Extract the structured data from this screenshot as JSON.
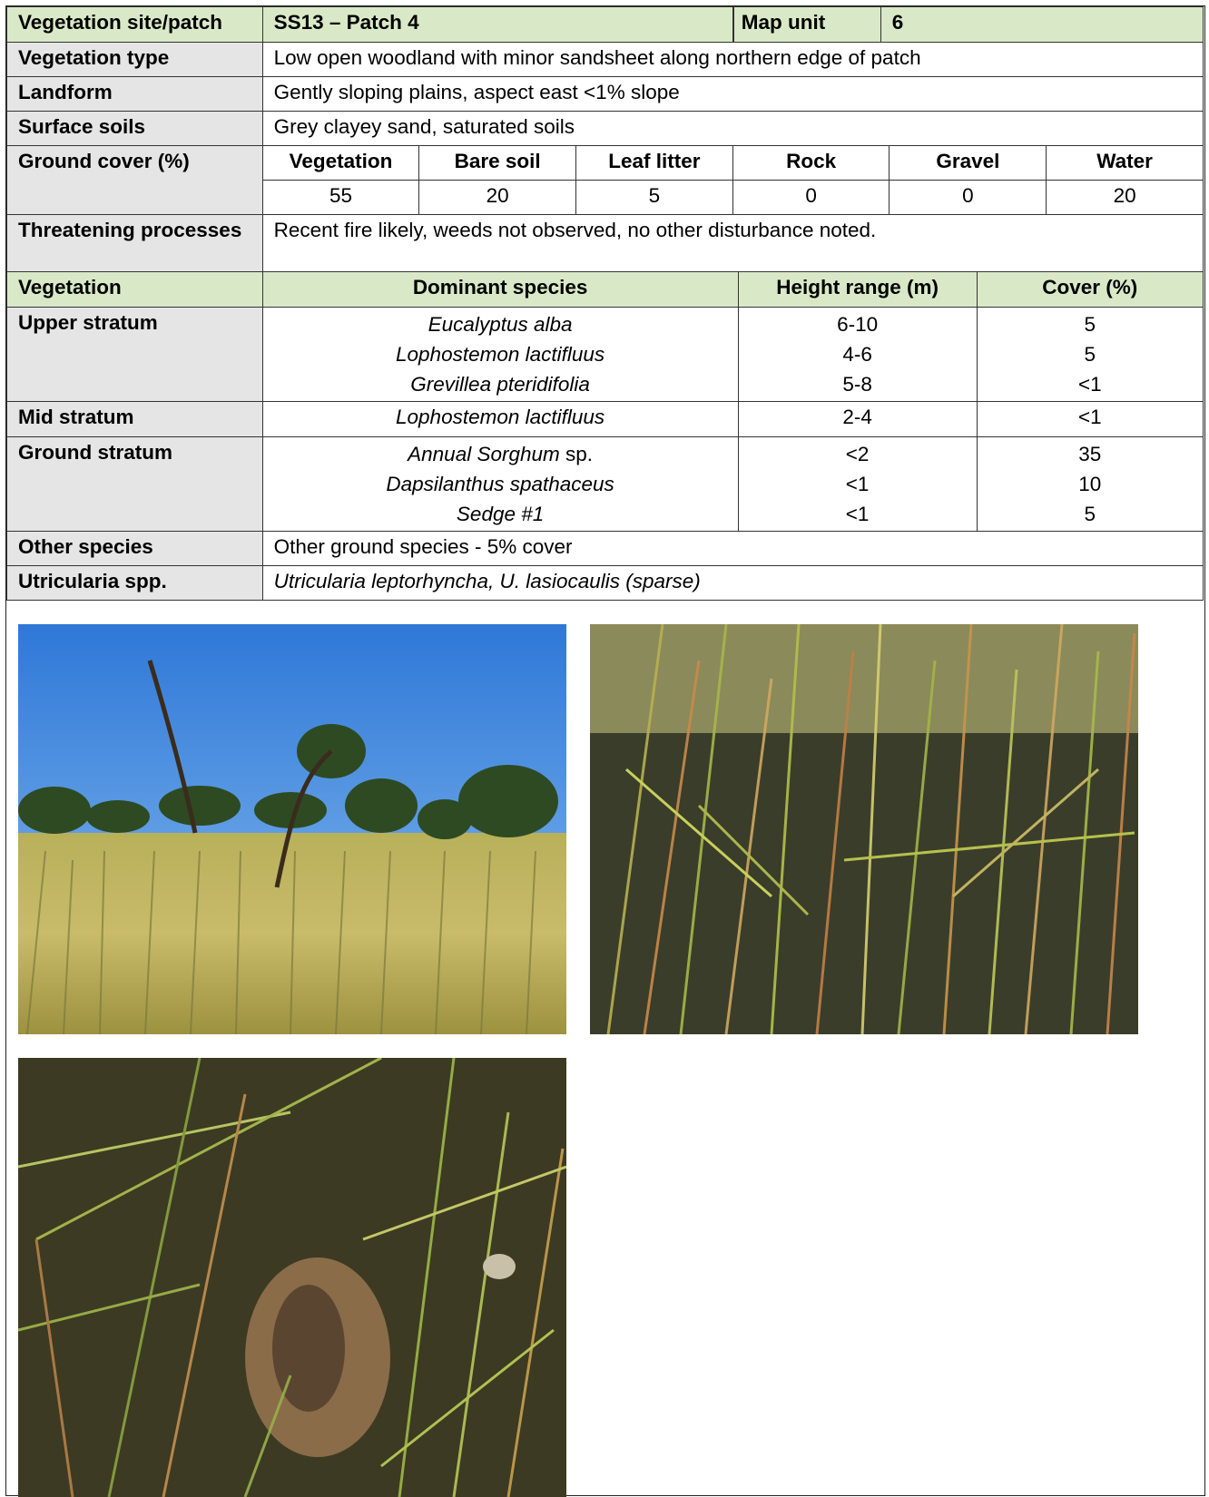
{
  "site": {
    "label": "Vegetation site/patch",
    "value": "SS13 – Patch 4",
    "map_unit_label": "Map unit",
    "map_unit_value": "6"
  },
  "vegetation_type": {
    "label": "Vegetation type",
    "value": "Low open woodland with minor sandsheet along northern edge of patch"
  },
  "landform": {
    "label": "Landform",
    "value": "Gently sloping plains, aspect east <1% slope"
  },
  "surface_soils": {
    "label": "Surface soils",
    "value": "Grey clayey sand, saturated soils"
  },
  "ground_cover": {
    "label": "Ground cover (%)",
    "headers": [
      "Vegetation",
      "Bare soil",
      "Leaf litter",
      "Rock",
      "Gravel",
      "Water"
    ],
    "values": [
      "55",
      "20",
      "5",
      "0",
      "0",
      "20"
    ]
  },
  "threatening": {
    "label": "Threatening processes",
    "value": "Recent fire likely, weeds not observed, no other disturbance noted."
  },
  "strata_header": {
    "vegetation": "Vegetation",
    "dominant_species": "Dominant species",
    "height_range": "Height range (m)",
    "cover": "Cover (%)"
  },
  "upper_stratum": {
    "label": "Upper stratum",
    "species": [
      "Eucalyptus alba",
      "Lophostemon lactifluus",
      "Grevillea pteridifolia"
    ],
    "heights": [
      "6-10",
      "4-6",
      "5-8"
    ],
    "covers": [
      "5",
      "5",
      "<1"
    ]
  },
  "mid_stratum": {
    "label": "Mid stratum",
    "species": [
      "Lophostemon lactifluus"
    ],
    "heights": [
      "2-4"
    ],
    "covers": [
      "<1"
    ]
  },
  "ground_stratum": {
    "label": "Ground stratum",
    "species_0_italic": "Annual Sorghum",
    "species_0_plain": " sp.",
    "species": [
      "Annual Sorghum sp.",
      "Dapsilanthus spathaceus",
      "Sedge #1"
    ],
    "heights": [
      "<2",
      "<1",
      "<1"
    ],
    "covers": [
      "35",
      "10",
      "5"
    ]
  },
  "other_species": {
    "label": "Other species",
    "value": "Other ground species - 5% cover"
  },
  "utricularia": {
    "label": "Utricularia spp.",
    "value": "Utricularia leptorhyncha, U. lasiocaulis (sparse)"
  },
  "colors": {
    "header_green": "#d9e9c7",
    "label_grey": "#e5e5e5",
    "border": "#333333"
  }
}
